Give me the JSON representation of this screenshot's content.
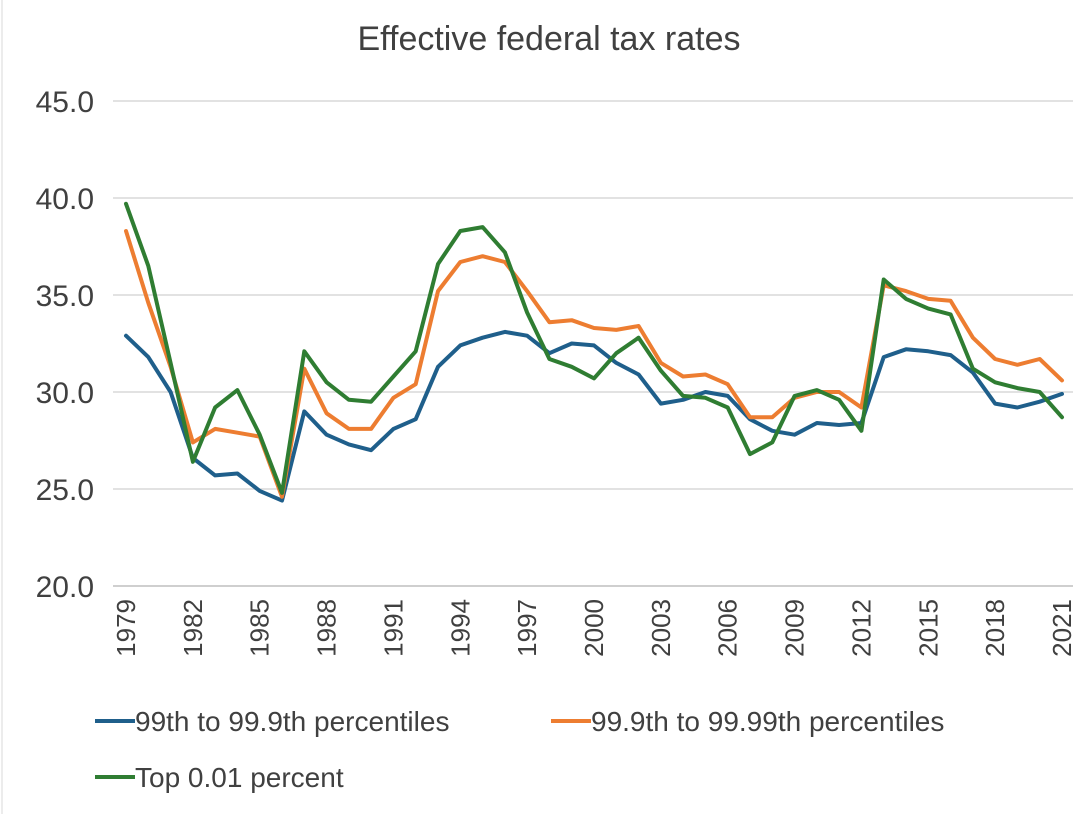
{
  "chart_data": {
    "type": "line",
    "title": "Effective federal tax rates",
    "xlabel": "",
    "ylabel": "",
    "ylim": [
      20.0,
      45.0
    ],
    "y_ticks": [
      "20.0",
      "25.0",
      "30.0",
      "35.0",
      "40.0",
      "45.0"
    ],
    "x": [
      1979,
      1980,
      1981,
      1982,
      1983,
      1984,
      1985,
      1986,
      1987,
      1988,
      1989,
      1990,
      1991,
      1992,
      1993,
      1994,
      1995,
      1996,
      1997,
      1998,
      1999,
      2000,
      2001,
      2002,
      2003,
      2004,
      2005,
      2006,
      2007,
      2008,
      2009,
      2010,
      2011,
      2012,
      2013,
      2014,
      2015,
      2016,
      2017,
      2018,
      2019,
      2020,
      2021
    ],
    "x_tick_labels": [
      "1979",
      "1982",
      "1985",
      "1988",
      "1991",
      "1994",
      "1997",
      "2000",
      "2003",
      "2006",
      "2009",
      "2012",
      "2015",
      "2018",
      "2021"
    ],
    "grid": true,
    "legend_position": "bottom",
    "series": [
      {
        "name": "99th to 99.9th percentiles",
        "color": "#1f5f8b",
        "values": [
          32.9,
          31.8,
          30.0,
          26.6,
          25.7,
          25.8,
          24.9,
          24.4,
          29.0,
          27.8,
          27.3,
          27.0,
          28.1,
          28.6,
          31.3,
          32.4,
          32.8,
          33.1,
          32.9,
          32.0,
          32.5,
          32.4,
          31.5,
          30.9,
          29.4,
          29.6,
          30.0,
          29.8,
          28.6,
          28.0,
          27.8,
          28.4,
          28.3,
          28.4,
          31.8,
          32.2,
          32.1,
          31.9,
          31.0,
          29.4,
          29.2,
          29.5,
          29.9
        ]
      },
      {
        "name": "99.9th to 99.99th percentiles",
        "color": "#ed7d31",
        "values": [
          38.3,
          34.6,
          31.3,
          27.4,
          28.1,
          27.9,
          27.7,
          24.6,
          31.2,
          28.9,
          28.1,
          28.1,
          29.7,
          30.4,
          35.2,
          36.7,
          37.0,
          36.7,
          35.2,
          33.6,
          33.7,
          33.3,
          33.2,
          33.4,
          31.5,
          30.8,
          30.9,
          30.4,
          28.7,
          28.7,
          29.7,
          30.0,
          30.0,
          29.2,
          35.5,
          35.2,
          34.8,
          34.7,
          32.8,
          31.7,
          31.4,
          31.7,
          30.6
        ]
      },
      {
        "name": "Top 0.01 percent",
        "color": "#2f7d32",
        "values": [
          39.7,
          36.5,
          31.5,
          26.4,
          29.2,
          30.1,
          27.8,
          24.8,
          32.1,
          30.5,
          29.6,
          29.5,
          30.8,
          32.1,
          36.6,
          38.3,
          38.5,
          37.2,
          34.1,
          31.7,
          31.3,
          30.7,
          32.0,
          32.8,
          31.1,
          29.8,
          29.7,
          29.2,
          26.8,
          27.4,
          29.8,
          30.1,
          29.6,
          28.0,
          35.8,
          34.8,
          34.3,
          34.0,
          31.2,
          30.5,
          30.2,
          30.0,
          28.7
        ]
      }
    ]
  }
}
